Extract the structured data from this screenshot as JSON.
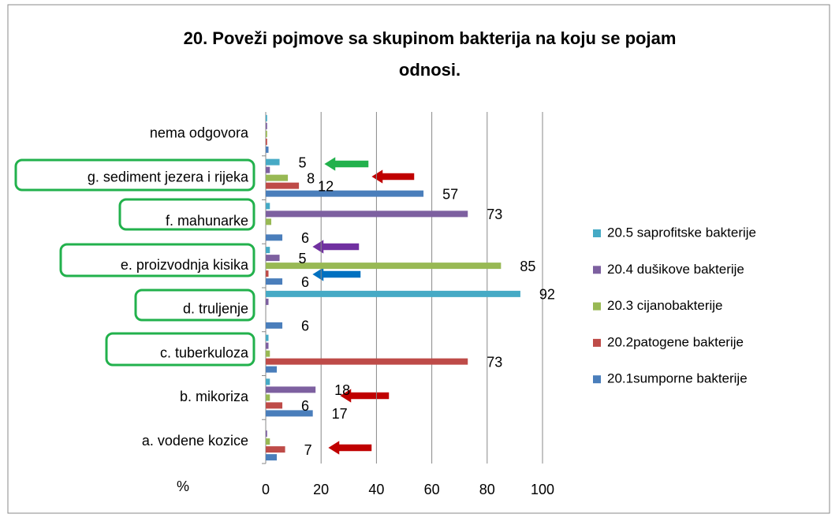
{
  "chart_data": {
    "type": "hbar",
    "title_lines": [
      "20. Poveži pojmove sa skupinom bakterija na koju se pojam",
      "odnosi."
    ],
    "x_label": "%",
    "categories": [
      "a. vodene kozice",
      "b. mikoriza",
      "c. tuberkuloza",
      "d. truljenje",
      "e. proizvodnja kisika",
      "f. mahunarke",
      "g. sediment jezera i rijeka",
      "nema odgovora"
    ],
    "series": [
      {
        "name": "20.1sumporne bakterije",
        "color": "#4a7ebb",
        "values": [
          4,
          17,
          4,
          6,
          6,
          6,
          57,
          1
        ],
        "value_labels": [
          null,
          "17",
          null,
          "6",
          "6",
          "6",
          "57",
          null
        ]
      },
      {
        "name": "20.2patogene bakterije",
        "color": "#be4b48",
        "values": [
          7,
          6,
          73,
          0,
          1,
          0,
          12,
          0.5
        ],
        "value_labels": [
          "7",
          "6",
          "73",
          null,
          null,
          null,
          "12",
          null
        ]
      },
      {
        "name": "20.3 cijanobakterije",
        "color": "#98b954",
        "values": [
          1.5,
          1.5,
          1.5,
          0,
          85,
          2,
          8,
          0.5
        ],
        "value_labels": [
          null,
          null,
          null,
          null,
          "85",
          null,
          "8",
          null
        ]
      },
      {
        "name": "20.4 dušikove bakterije",
        "color": "#7d60a0",
        "values": [
          0.5,
          18,
          1,
          1,
          5,
          73,
          1.5,
          0.5
        ],
        "value_labels": [
          null,
          "18",
          null,
          null,
          "5",
          "73",
          null,
          null
        ]
      },
      {
        "name": "20.5 saprofitske bakterije",
        "color": "#46aac5",
        "values": [
          0,
          1.5,
          1,
          92,
          1.5,
          1.5,
          5,
          0.5
        ],
        "value_labels": [
          null,
          null,
          null,
          "92",
          null,
          null,
          "5",
          null
        ]
      }
    ],
    "xlim": [
      0,
      100
    ],
    "xticks": [
      0,
      20,
      40,
      60,
      80,
      100
    ],
    "grid": true,
    "legend": "right"
  }
}
